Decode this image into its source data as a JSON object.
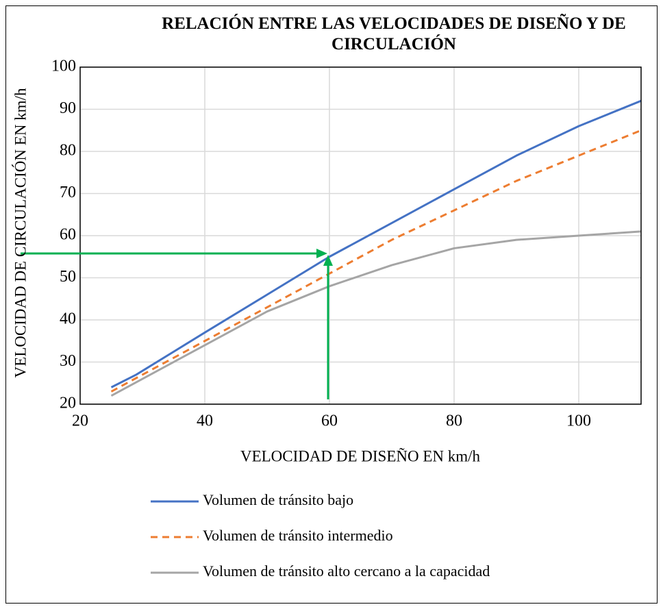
{
  "chart_data": {
    "type": "line",
    "title": "RELACIÓN ENTRE LAS VELOCIDADES DE DISEÑO Y DE CIRCULACIÓN",
    "x_label": "VELOCIDAD DE DISEÑO EN km/h",
    "y_label": "VELOCIDAD DE CIRCULACIÓN EN km/h",
    "xlim": [
      20,
      110
    ],
    "xticks": [
      20,
      40,
      60,
      80,
      100
    ],
    "ylim": [
      20,
      100
    ],
    "yticks": [
      20,
      30,
      40,
      50,
      60,
      70,
      80,
      90,
      100
    ],
    "grid": true,
    "legend": "bottom",
    "series": [
      {
        "name": "Volumen de tránsito bajo",
        "color": "#4472c4",
        "dash": false,
        "x": [
          25,
          29,
          40,
          50,
          60,
          70,
          80,
          90,
          100,
          110
        ],
        "values": [
          24,
          27,
          37,
          46,
          55,
          63,
          71,
          79,
          86,
          92
        ]
      },
      {
        "name": "Volumen de tránsito intermedio",
        "color": "#ed7d31",
        "dash": true,
        "x": [
          25,
          40,
          50,
          60,
          70,
          80,
          90,
          100,
          110
        ],
        "values": [
          23,
          35,
          43,
          51,
          59,
          66,
          73,
          79,
          85
        ]
      },
      {
        "name": "Volumen de tránsito alto cercano a la capacidad",
        "color": "#a5a5a5",
        "dash": false,
        "x": [
          25,
          40,
          50,
          60,
          70,
          80,
          90,
          100,
          110
        ],
        "values": [
          22,
          34,
          42,
          48,
          53,
          57,
          59,
          60,
          61
        ]
      }
    ]
  }
}
